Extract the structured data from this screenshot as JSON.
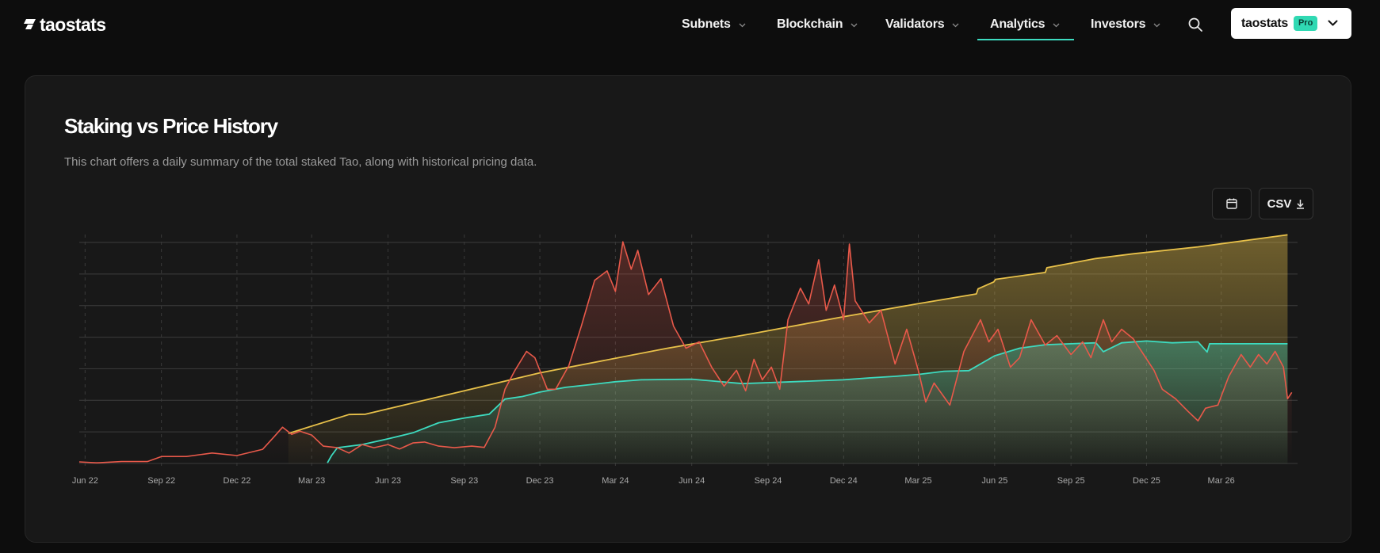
{
  "header": {
    "logo_text": "taostats",
    "nav": [
      {
        "label": "Subnets"
      },
      {
        "label": "Blockchain"
      },
      {
        "label": "Validators"
      },
      {
        "label": "Analytics",
        "active": true
      },
      {
        "label": "Investors"
      }
    ],
    "account": {
      "name": "taostats",
      "badge": "Pro"
    }
  },
  "colors": {
    "accent": "#3ddbc0",
    "price": "#e8594a",
    "staked": "#3ddbc0",
    "supply": "#e8c14a"
  },
  "icons": [
    "search-icon",
    "calendar-icon",
    "download-icon",
    "chevron-down-icon"
  ],
  "card": {
    "csv_label": "CSV"
  },
  "chart_data": {
    "type": "line",
    "title": "Staking vs Price History",
    "subtitle": "This chart offers a daily summary of the total staked Tao, along with historical pricing data.",
    "grid": true,
    "x_range": [
      "2022-05-25",
      "2026-06-01"
    ],
    "x_ticks": [
      "Jun 22",
      "Sep 22",
      "Dec 22",
      "Mar 23",
      "Jun 23",
      "Sep 23",
      "Dec 23",
      "Mar 24",
      "Jun 24",
      "Sep 24",
      "Dec 24",
      "Mar 25",
      "Jun 25",
      "Sep 25",
      "Dec 25",
      "Mar 26"
    ],
    "y_axis": {
      "min": 0,
      "max": 7,
      "labels_shown": false
    },
    "series": [
      {
        "key": "supply",
        "style": "area",
        "points": [
          [
            "2023-02-01",
            0.95
          ],
          [
            "2023-04-15",
            1.55
          ],
          [
            "2023-05-05",
            1.56
          ],
          [
            "2023-12-01",
            2.87
          ],
          [
            "2024-05-01",
            3.64
          ],
          [
            "2024-08-15",
            4.12
          ],
          [
            "2024-12-01",
            4.65
          ],
          [
            "2025-03-01",
            5.06
          ],
          [
            "2025-05-10",
            5.37
          ],
          [
            "2025-05-12",
            5.53
          ],
          [
            "2025-05-31",
            5.75
          ],
          [
            "2025-06-02",
            5.83
          ],
          [
            "2025-08-01",
            6.05
          ],
          [
            "2025-08-03",
            6.2
          ],
          [
            "2025-10-01",
            6.49
          ],
          [
            "2025-11-15",
            6.64
          ],
          [
            "2026-02-01",
            6.86
          ],
          [
            "2026-05-20",
            7.24
          ]
        ]
      },
      {
        "key": "staked",
        "style": "area",
        "points": [
          [
            "2023-03-20",
            0.02
          ],
          [
            "2023-03-25",
            0.25
          ],
          [
            "2023-04-01",
            0.5
          ],
          [
            "2023-05-01",
            0.6
          ],
          [
            "2023-06-01",
            0.78
          ],
          [
            "2023-07-01",
            0.97
          ],
          [
            "2023-08-01",
            1.29
          ],
          [
            "2023-09-01",
            1.44
          ],
          [
            "2023-10-01",
            1.56
          ],
          [
            "2023-10-20",
            2.04
          ],
          [
            "2023-11-10",
            2.12
          ],
          [
            "2023-12-01",
            2.26
          ],
          [
            "2024-01-01",
            2.41
          ],
          [
            "2024-02-01",
            2.5
          ],
          [
            "2024-03-01",
            2.59
          ],
          [
            "2024-04-01",
            2.65
          ],
          [
            "2024-06-01",
            2.67
          ],
          [
            "2024-08-01",
            2.53
          ],
          [
            "2024-09-01",
            2.56
          ],
          [
            "2024-10-01",
            2.59
          ],
          [
            "2024-12-01",
            2.65
          ],
          [
            "2025-01-01",
            2.71
          ],
          [
            "2025-02-01",
            2.76
          ],
          [
            "2025-03-01",
            2.82
          ],
          [
            "2025-04-01",
            2.92
          ],
          [
            "2025-05-01",
            2.94
          ],
          [
            "2025-06-01",
            3.41
          ],
          [
            "2025-07-01",
            3.65
          ],
          [
            "2025-08-01",
            3.76
          ],
          [
            "2025-09-01",
            3.79
          ],
          [
            "2025-10-01",
            3.82
          ],
          [
            "2025-10-10",
            3.54
          ],
          [
            "2025-11-01",
            3.82
          ],
          [
            "2025-12-01",
            3.88
          ],
          [
            "2026-01-01",
            3.82
          ],
          [
            "2026-02-01",
            3.85
          ],
          [
            "2026-02-12",
            3.53
          ],
          [
            "2026-02-15",
            3.79
          ],
          [
            "2026-05-20",
            3.79
          ]
        ]
      },
      {
        "key": "price",
        "style": "line",
        "points": [
          [
            "2022-05-25",
            0.05
          ],
          [
            "2022-06-15",
            0.02
          ],
          [
            "2022-07-15",
            0.06
          ],
          [
            "2022-08-15",
            0.06
          ],
          [
            "2022-09-01",
            0.22
          ],
          [
            "2022-10-01",
            0.22
          ],
          [
            "2022-11-01",
            0.33
          ],
          [
            "2022-12-01",
            0.25
          ],
          [
            "2023-01-01",
            0.45
          ],
          [
            "2023-01-15",
            0.85
          ],
          [
            "2023-01-25",
            1.15
          ],
          [
            "2023-02-05",
            0.92
          ],
          [
            "2023-02-15",
            1.02
          ],
          [
            "2023-03-01",
            0.9
          ],
          [
            "2023-03-15",
            0.55
          ],
          [
            "2023-04-01",
            0.5
          ],
          [
            "2023-04-15",
            0.33
          ],
          [
            "2023-05-01",
            0.6
          ],
          [
            "2023-05-15",
            0.5
          ],
          [
            "2023-06-01",
            0.6
          ],
          [
            "2023-06-15",
            0.46
          ],
          [
            "2023-07-01",
            0.65
          ],
          [
            "2023-07-15",
            0.68
          ],
          [
            "2023-08-01",
            0.55
          ],
          [
            "2023-08-20",
            0.5
          ],
          [
            "2023-09-10",
            0.55
          ],
          [
            "2023-09-25",
            0.51
          ],
          [
            "2023-10-08",
            1.15
          ],
          [
            "2023-10-20",
            2.35
          ],
          [
            "2023-11-01",
            2.95
          ],
          [
            "2023-11-15",
            3.55
          ],
          [
            "2023-11-25",
            3.35
          ],
          [
            "2023-12-10",
            2.35
          ],
          [
            "2023-12-20",
            2.35
          ],
          [
            "2024-01-05",
            3.1
          ],
          [
            "2024-01-20",
            4.35
          ],
          [
            "2024-02-05",
            5.8
          ],
          [
            "2024-02-20",
            6.1
          ],
          [
            "2024-03-01",
            5.45
          ],
          [
            "2024-03-10",
            7.02
          ],
          [
            "2024-03-20",
            6.15
          ],
          [
            "2024-03-28",
            6.75
          ],
          [
            "2024-04-10",
            5.35
          ],
          [
            "2024-04-25",
            5.85
          ],
          [
            "2024-05-10",
            4.35
          ],
          [
            "2024-05-25",
            3.65
          ],
          [
            "2024-06-10",
            3.85
          ],
          [
            "2024-06-25",
            3.05
          ],
          [
            "2024-07-10",
            2.45
          ],
          [
            "2024-07-25",
            2.95
          ],
          [
            "2024-08-05",
            2.3
          ],
          [
            "2024-08-15",
            3.3
          ],
          [
            "2024-08-25",
            2.65
          ],
          [
            "2024-09-05",
            3.05
          ],
          [
            "2024-09-15",
            2.35
          ],
          [
            "2024-09-25",
            4.55
          ],
          [
            "2024-10-10",
            5.55
          ],
          [
            "2024-10-20",
            5.05
          ],
          [
            "2024-11-01",
            6.45
          ],
          [
            "2024-11-10",
            4.85
          ],
          [
            "2024-11-20",
            5.65
          ],
          [
            "2024-12-01",
            4.55
          ],
          [
            "2024-12-08",
            6.95
          ],
          [
            "2024-12-15",
            5.15
          ],
          [
            "2025-01-01",
            4.45
          ],
          [
            "2025-01-15",
            4.85
          ],
          [
            "2025-02-01",
            3.15
          ],
          [
            "2025-02-15",
            4.25
          ],
          [
            "2025-03-01",
            2.95
          ],
          [
            "2025-03-10",
            1.95
          ],
          [
            "2025-03-20",
            2.55
          ],
          [
            "2025-04-08",
            1.85
          ],
          [
            "2025-04-25",
            3.55
          ],
          [
            "2025-05-15",
            4.55
          ],
          [
            "2025-05-25",
            3.85
          ],
          [
            "2025-06-05",
            4.25
          ],
          [
            "2025-06-20",
            3.05
          ],
          [
            "2025-07-01",
            3.35
          ],
          [
            "2025-07-15",
            4.55
          ],
          [
            "2025-08-01",
            3.75
          ],
          [
            "2025-08-15",
            4.05
          ],
          [
            "2025-09-01",
            3.45
          ],
          [
            "2025-09-15",
            3.85
          ],
          [
            "2025-09-25",
            3.35
          ],
          [
            "2025-10-10",
            4.55
          ],
          [
            "2025-10-20",
            3.85
          ],
          [
            "2025-11-01",
            4.25
          ],
          [
            "2025-11-15",
            3.95
          ],
          [
            "2025-11-25",
            3.55
          ],
          [
            "2025-12-10",
            2.95
          ],
          [
            "2025-12-20",
            2.35
          ],
          [
            "2026-01-05",
            2.05
          ],
          [
            "2026-01-20",
            1.65
          ],
          [
            "2026-02-01",
            1.35
          ],
          [
            "2026-02-10",
            1.75
          ],
          [
            "2026-02-25",
            1.85
          ],
          [
            "2026-03-10",
            2.75
          ],
          [
            "2026-03-25",
            3.45
          ],
          [
            "2026-04-05",
            3.05
          ],
          [
            "2026-04-15",
            3.45
          ],
          [
            "2026-04-25",
            3.15
          ],
          [
            "2026-05-05",
            3.55
          ],
          [
            "2026-05-15",
            3.05
          ],
          [
            "2026-05-20",
            2.05
          ],
          [
            "2026-05-25",
            2.25
          ]
        ]
      }
    ]
  }
}
